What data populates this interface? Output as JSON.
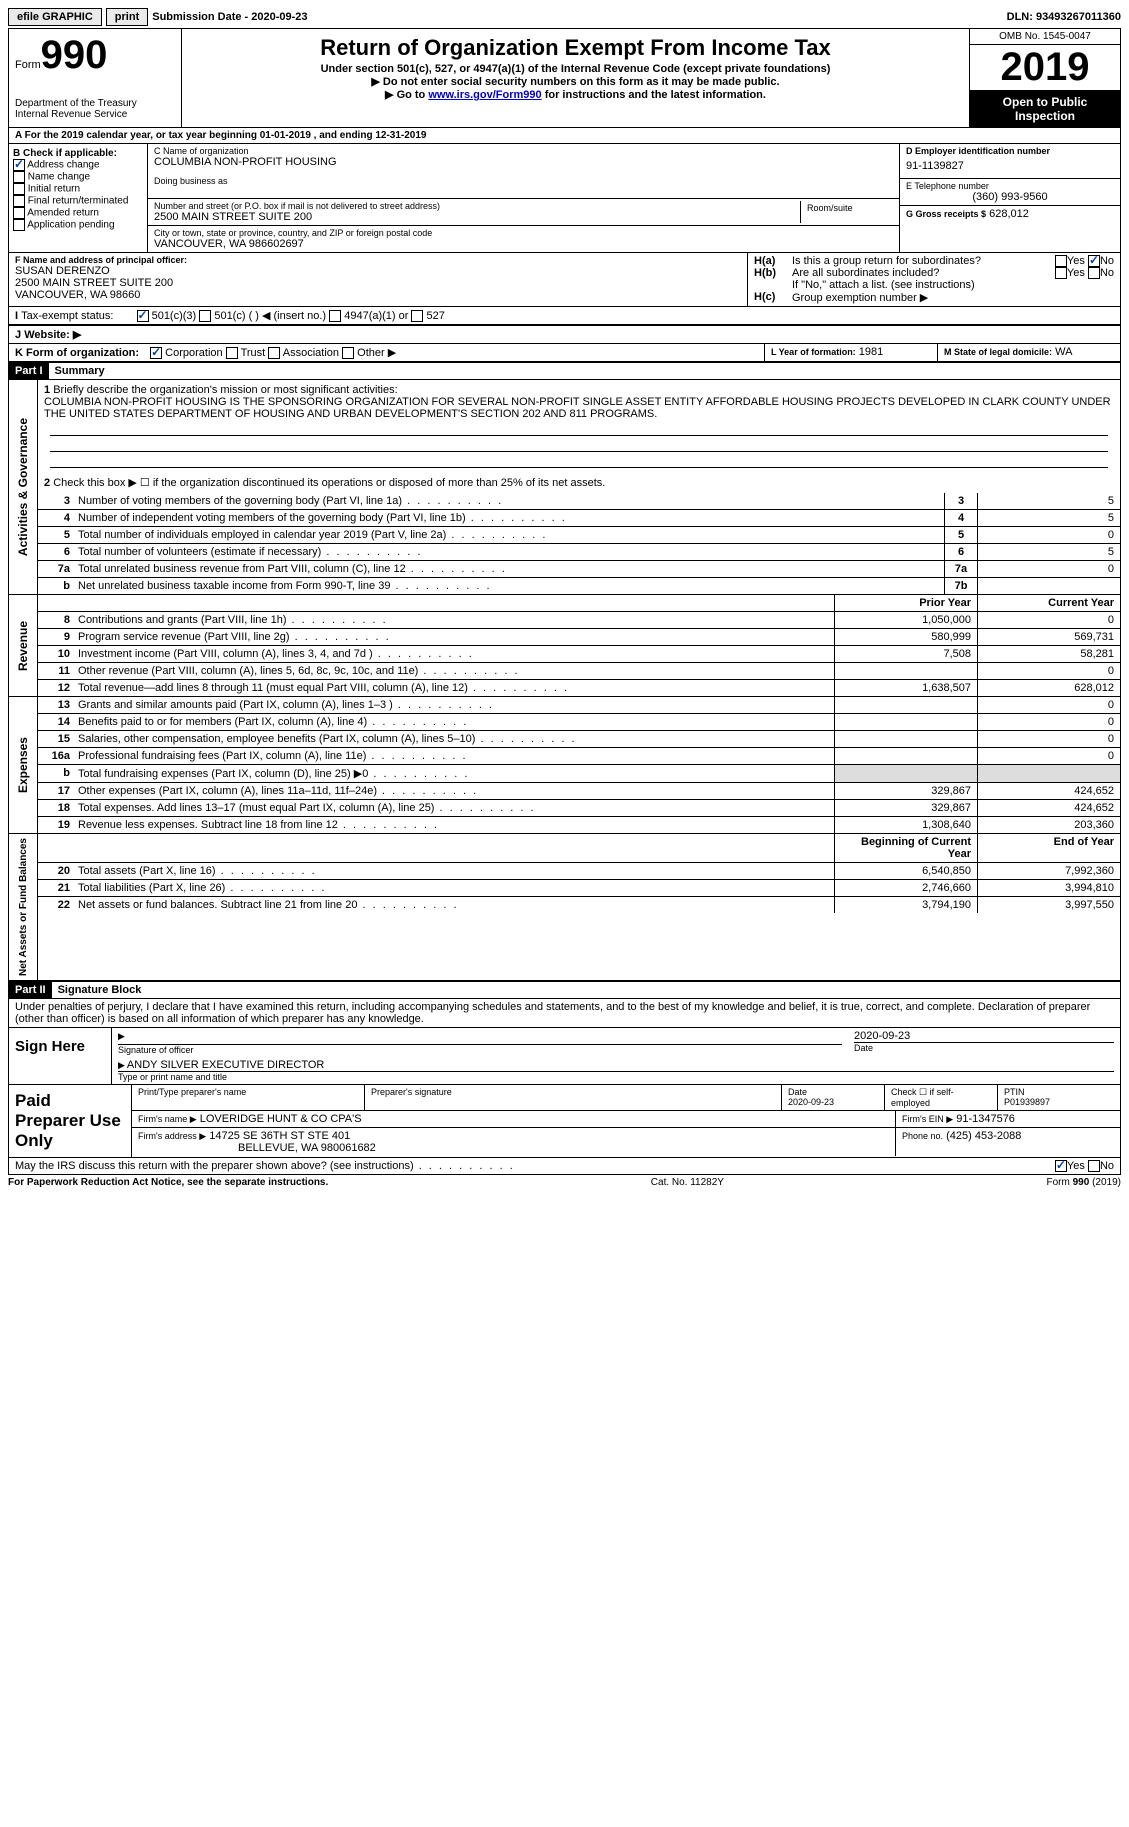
{
  "topbar": {
    "efile": "efile GRAPHIC",
    "print": "print",
    "submission": "Submission Date - 2020-09-23",
    "dln": "DLN: 93493267011360"
  },
  "header": {
    "form_label": "Form",
    "form_number": "990",
    "dept": "Department of the Treasury\nInternal Revenue Service",
    "title": "Return of Organization Exempt From Income Tax",
    "subtitle": "Under section 501(c), 527, or 4947(a)(1) of the Internal Revenue Code (except private foundations)",
    "note1": "▶ Do not enter social security numbers on this form as it may be made public.",
    "note2_pre": "▶ Go to ",
    "note2_link": "www.irs.gov/Form990",
    "note2_post": " for instructions and the latest information.",
    "omb": "OMB No. 1545-0047",
    "year": "2019",
    "open": "Open to Public Inspection"
  },
  "line_a": "For the 2019 calendar year, or tax year beginning 01-01-2019   , and ending 12-31-2019",
  "block_b": {
    "label": "B Check if applicable:",
    "items": [
      "Address change",
      "Name change",
      "Initial return",
      "Final return/terminated",
      "Amended return",
      "Application pending"
    ],
    "checked_idx": 0
  },
  "block_c": {
    "label_name": "C Name of organization",
    "name": "COLUMBIA NON-PROFIT HOUSING",
    "dba_label": "Doing business as",
    "street_label": "Number and street (or P.O. box if mail is not delivered to street address)",
    "room_label": "Room/suite",
    "street": "2500 MAIN STREET SUITE 200",
    "city_label": "City or town, state or province, country, and ZIP or foreign postal code",
    "city": "VANCOUVER, WA  986602697"
  },
  "block_d": {
    "label": "D Employer identification number",
    "val": "91-1139827"
  },
  "block_e": {
    "label": "E Telephone number",
    "val": "(360) 993-9560"
  },
  "block_g": {
    "label": "G Gross receipts $",
    "val": "628,012"
  },
  "block_f": {
    "label": "F  Name and address of principal officer:",
    "name": "SUSAN DERENZO",
    "addr1": "2500 MAIN STREET SUITE 200",
    "addr2": "VANCOUVER, WA  98660"
  },
  "block_h": {
    "ha": "Is this a group return for subordinates?",
    "hb": "Are all subordinates included?",
    "hb_note": "If \"No,\" attach a list. (see instructions)",
    "hc": "Group exemption number ▶",
    "ha_label": "H(a)",
    "hb_label": "H(b)",
    "hc_label": "H(c)",
    "yes": "Yes",
    "no": "No"
  },
  "block_i": {
    "label": "Tax-exempt status:",
    "opts": [
      "501(c)(3)",
      "501(c) (  ) ◀ (insert no.)",
      "4947(a)(1) or",
      "527"
    ]
  },
  "block_j": {
    "label": "Website: ▶"
  },
  "block_k": {
    "label": "K Form of organization:",
    "opts": [
      "Corporation",
      "Trust",
      "Association",
      "Other ▶"
    ]
  },
  "block_l": {
    "label": "L Year of formation:",
    "val": "1981"
  },
  "block_m": {
    "label": "M State of legal domicile:",
    "val": "WA"
  },
  "part1": {
    "header": "Part I",
    "title": "Summary",
    "q1_label": "Briefly describe the organization's mission or most significant activities:",
    "q1_text": "COLUMBIA NON-PROFIT HOUSING IS THE SPONSORING ORGANIZATION FOR SEVERAL NON-PROFIT SINGLE ASSET ENTITY AFFORDABLE HOUSING PROJECTS DEVELOPED IN CLARK COUNTY UNDER THE UNITED STATES DEPARTMENT OF HOUSING AND URBAN DEVELOPMENT'S SECTION 202 AND 811 PROGRAMS.",
    "q2": "Check this box ▶ ☐  if the organization discontinued its operations or disposed of more than 25% of its net assets.",
    "section_ag": "Activities & Governance",
    "ag_lines": [
      {
        "n": "3",
        "d": "Number of voting members of the governing body (Part VI, line 1a)",
        "box": "3",
        "v": "5"
      },
      {
        "n": "4",
        "d": "Number of independent voting members of the governing body (Part VI, line 1b)",
        "box": "4",
        "v": "5"
      },
      {
        "n": "5",
        "d": "Total number of individuals employed in calendar year 2019 (Part V, line 2a)",
        "box": "5",
        "v": "0"
      },
      {
        "n": "6",
        "d": "Total number of volunteers (estimate if necessary)",
        "box": "6",
        "v": "5"
      },
      {
        "n": "7a",
        "d": "Total unrelated business revenue from Part VIII, column (C), line 12",
        "box": "7a",
        "v": "0"
      },
      {
        "n": "b",
        "d": "Net unrelated business taxable income from Form 990-T, line 39",
        "box": "7b",
        "v": ""
      }
    ],
    "col_prior": "Prior Year",
    "col_current": "Current Year",
    "section_rev": "Revenue",
    "rev_lines": [
      {
        "n": "8",
        "d": "Contributions and grants (Part VIII, line 1h)",
        "p": "1,050,000",
        "c": "0"
      },
      {
        "n": "9",
        "d": "Program service revenue (Part VIII, line 2g)",
        "p": "580,999",
        "c": "569,731"
      },
      {
        "n": "10",
        "d": "Investment income (Part VIII, column (A), lines 3, 4, and 7d )",
        "p": "7,508",
        "c": "58,281"
      },
      {
        "n": "11",
        "d": "Other revenue (Part VIII, column (A), lines 5, 6d, 8c, 9c, 10c, and 11e)",
        "p": "",
        "c": "0"
      },
      {
        "n": "12",
        "d": "Total revenue—add lines 8 through 11 (must equal Part VIII, column (A), line 12)",
        "p": "1,638,507",
        "c": "628,012"
      }
    ],
    "section_exp": "Expenses",
    "exp_lines": [
      {
        "n": "13",
        "d": "Grants and similar amounts paid (Part IX, column (A), lines 1–3 )",
        "p": "",
        "c": "0"
      },
      {
        "n": "14",
        "d": "Benefits paid to or for members (Part IX, column (A), line 4)",
        "p": "",
        "c": "0"
      },
      {
        "n": "15",
        "d": "Salaries, other compensation, employee benefits (Part IX, column (A), lines 5–10)",
        "p": "",
        "c": "0"
      },
      {
        "n": "16a",
        "d": "Professional fundraising fees (Part IX, column (A), line 11e)",
        "p": "",
        "c": "0"
      },
      {
        "n": "b",
        "d": "Total fundraising expenses (Part IX, column (D), line 25) ▶0",
        "p": "shade",
        "c": "shade"
      },
      {
        "n": "17",
        "d": "Other expenses (Part IX, column (A), lines 11a–11d, 11f–24e)",
        "p": "329,867",
        "c": "424,652"
      },
      {
        "n": "18",
        "d": "Total expenses. Add lines 13–17 (must equal Part IX, column (A), line 25)",
        "p": "329,867",
        "c": "424,652"
      },
      {
        "n": "19",
        "d": "Revenue less expenses. Subtract line 18 from line 12",
        "p": "1,308,640",
        "c": "203,360"
      }
    ],
    "section_na": "Net Assets or Fund Balances",
    "col_boy": "Beginning of Current Year",
    "col_eoy": "End of Year",
    "na_lines": [
      {
        "n": "20",
        "d": "Total assets (Part X, line 16)",
        "p": "6,540,850",
        "c": "7,992,360"
      },
      {
        "n": "21",
        "d": "Total liabilities (Part X, line 26)",
        "p": "2,746,660",
        "c": "3,994,810"
      },
      {
        "n": "22",
        "d": "Net assets or fund balances. Subtract line 21 from line 20",
        "p": "3,794,190",
        "c": "3,997,550"
      }
    ]
  },
  "part2": {
    "header": "Part II",
    "title": "Signature Block",
    "perjury": "Under penalties of perjury, I declare that I have examined this return, including accompanying schedules and statements, and to the best of my knowledge and belief, it is true, correct, and complete. Declaration of preparer (other than officer) is based on all information of which preparer has any knowledge.",
    "sign_here": "Sign Here",
    "sig_officer": "Signature of officer",
    "sig_date_val": "2020-09-23",
    "date": "Date",
    "officer_name": "ANDY SILVER  EXECUTIVE DIRECTOR",
    "name_title": "Type or print name and title",
    "paid": "Paid Preparer Use Only",
    "prep_name_label": "Print/Type preparer's name",
    "prep_sig_label": "Preparer's signature",
    "prep_date_label": "Date",
    "prep_date": "2020-09-23",
    "check_if": "Check ☐ if self-employed",
    "ptin_label": "PTIN",
    "ptin": "P01939897",
    "firm_name_label": "Firm's name    ▶",
    "firm_name": "LOVERIDGE HUNT & CO CPA'S",
    "firm_ein_label": "Firm's EIN ▶",
    "firm_ein": "91-1347576",
    "firm_addr_label": "Firm's address ▶",
    "firm_addr1": "14725 SE 36TH ST STE 401",
    "firm_addr2": "BELLEVUE, WA  980061682",
    "phone_label": "Phone no.",
    "phone": "(425) 453-2088",
    "discuss": "May the IRS discuss this return with the preparer shown above? (see instructions)"
  },
  "footer": {
    "left": "For Paperwork Reduction Act Notice, see the separate instructions.",
    "mid": "Cat. No. 11282Y",
    "right": "Form 990 (2019)"
  }
}
